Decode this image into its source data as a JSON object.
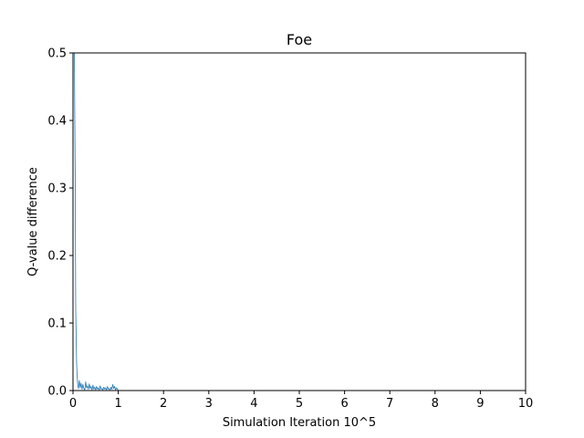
{
  "chart_data": {
    "type": "line",
    "title": "Foe",
    "xlabel": "Simulation Iteration 10^5",
    "ylabel": "Q-value difference",
    "xlim": [
      0,
      10
    ],
    "ylim": [
      0,
      0.5
    ],
    "xticks": [
      0,
      1,
      2,
      3,
      4,
      5,
      6,
      7,
      8,
      9,
      10
    ],
    "xtick_labels": [
      "0",
      "1",
      "2",
      "3",
      "4",
      "5",
      "6",
      "7",
      "8",
      "9",
      "10"
    ],
    "yticks": [
      0.0,
      0.1,
      0.2,
      0.3,
      0.4,
      0.5
    ],
    "ytick_labels": [
      "0.0",
      "0.1",
      "0.2",
      "0.3",
      "0.4",
      "0.5"
    ],
    "grid": false,
    "series": [
      {
        "color": "#1f77b4",
        "x": [
          0.03,
          0.05,
          0.06,
          0.07,
          0.08,
          0.09,
          0.1,
          0.11,
          0.12,
          0.14,
          0.16,
          0.18,
          0.2,
          0.22,
          0.24,
          0.26,
          0.28,
          0.3,
          0.32,
          0.34,
          0.36,
          0.38,
          0.4,
          0.42,
          0.44,
          0.46,
          0.48,
          0.5,
          0.52,
          0.54,
          0.56,
          0.58,
          0.6,
          0.62,
          0.64,
          0.66,
          0.68,
          0.7,
          0.72,
          0.74,
          0.76,
          0.78,
          0.8,
          0.82,
          0.84,
          0.86,
          0.88,
          0.9,
          0.92,
          0.94,
          0.96,
          0.98,
          1.0
        ],
        "y": [
          0.5,
          0.3,
          0.12,
          0.08,
          0.04,
          0.025,
          0.012,
          0.006,
          0.003,
          0.015,
          0.004,
          0.011,
          0.002,
          0.009,
          0.003,
          0.001,
          0.013,
          0.004,
          0.007,
          0.002,
          0.01,
          0.003,
          0.006,
          0.001,
          0.008,
          0.002,
          0.005,
          0.001,
          0.006,
          0.002,
          0.004,
          0.001,
          0.007,
          0.002,
          0.003,
          0.001,
          0.005,
          0.002,
          0.004,
          0.001,
          0.006,
          0.002,
          0.003,
          0.001,
          0.005,
          0.002,
          0.009,
          0.003,
          0.006,
          0.001,
          0.004,
          0.002,
          0.001
        ]
      }
    ]
  }
}
